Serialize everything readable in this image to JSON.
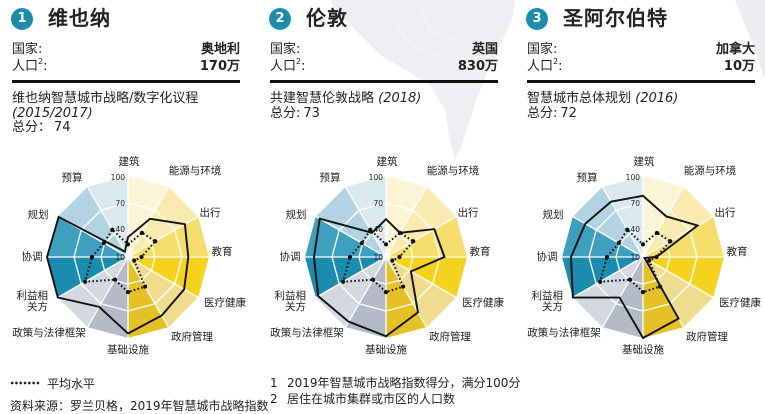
{
  "labels": {
    "country": "国家:",
    "population": {
      "text": "人口",
      "sup": "2",
      "suffix": ":"
    }
  },
  "cities": [
    {
      "rank": "1",
      "name": "维也纳",
      "country": "奥地利",
      "population": "170万",
      "strategy": "维也纳智慧城市战略/数字化议程",
      "strategy_year": "(2015/2017)",
      "score_label": "总分：",
      "score": "74"
    },
    {
      "rank": "2",
      "name": "伦敦",
      "country": "英国",
      "population": "830万",
      "strategy": "共建智慧伦敦战略",
      "strategy_year": "(2018)",
      "score_label": "总分:",
      "score": "73"
    },
    {
      "rank": "3",
      "name": "圣阿尔伯特",
      "country": "加拿大",
      "population": "10万",
      "strategy": "智慧城市总体规划",
      "strategy_year": "(2016)",
      "score_label": "总分:",
      "score": "72"
    }
  ],
  "radar": {
    "axis_labels": [
      [
        "建筑"
      ],
      [
        "能源与环境"
      ],
      [
        "出行"
      ],
      [
        "教育"
      ],
      [
        "医疗健康"
      ],
      [
        "政府管理"
      ],
      [
        "基础设施"
      ],
      [
        "政策与法律框架"
      ],
      [
        "利益相",
        "关方"
      ],
      [
        "协调"
      ],
      [
        "规划"
      ],
      [
        "预算"
      ]
    ],
    "scale_ticks": [
      "100",
      "70",
      "40",
      "10"
    ],
    "wedge_colors": [
      "#fcf4d6",
      "#f9eab0",
      "#f6de6c",
      "#f4d21e",
      "#efdc8c",
      "#e5c125",
      "#b4bbc7",
      "#d3d8e1",
      "#1b8bae",
      "#3f9fbf",
      "#b3d3e2",
      "#dce8ef"
    ],
    "line_color": "#111111"
  },
  "legend": {
    "average_label": "平均水平"
  },
  "source": "资料来源：罗兰贝格，2019年智慧城市战略指数",
  "footnotes": [
    {
      "num": "1",
      "text": "2019年智慧城市战略指数得分，满分100分"
    },
    {
      "num": "2",
      "text": "居住在城市集群或市区的人口数"
    }
  ],
  "colors": {
    "badge": "#1d8cab",
    "text": "#222222",
    "map": "#edeff2"
  },
  "chart_data": [
    {
      "type": "radar",
      "title": "维也纳",
      "axes": [
        "建筑",
        "能源与环境",
        "出行",
        "教育",
        "医疗健康",
        "政府管理",
        "基础设施",
        "政策与法律框架",
        "利益相关方",
        "协调",
        "规划",
        "预算"
      ],
      "range": [
        10,
        100
      ],
      "ticks": [
        10,
        40,
        70,
        100
      ],
      "series": [
        {
          "name": "维也纳",
          "values": [
            32,
            59,
            83,
            77,
            82,
            85,
            95,
            74,
            100,
            100,
            99,
            17
          ]
        },
        {
          "name": "平均水平",
          "values": [
            24,
            41,
            45,
            25,
            18,
            48,
            49,
            39,
            65,
            50,
            41,
            45
          ]
        }
      ]
    },
    {
      "type": "radar",
      "title": "伦敦",
      "axes": [
        "建筑",
        "能源与环境",
        "出行",
        "教育",
        "医疗健康",
        "政府管理",
        "基础设施",
        "政策与法律框架",
        "利益相关方",
        "协调",
        "规划",
        "预算"
      ],
      "range": [
        10,
        100
      ],
      "ticks": [
        10,
        40,
        70,
        100
      ],
      "series": [
        {
          "name": "伦敦",
          "values": [
            52,
            41,
            72,
            75,
            42,
            81,
            98,
            93,
            97,
            90,
            95,
            41
          ]
        },
        {
          "name": "平均水平",
          "values": [
            24,
            41,
            45,
            25,
            18,
            48,
            49,
            39,
            65,
            50,
            41,
            45
          ]
        }
      ]
    },
    {
      "type": "radar",
      "title": "圣阿尔伯特",
      "axes": [
        "建筑",
        "能源与环境",
        "出行",
        "教育",
        "医疗健康",
        "政府管理",
        "基础设施",
        "政策与法律框架",
        "利益相关方",
        "协调",
        "规划",
        "预算"
      ],
      "range": [
        10,
        100
      ],
      "ticks": [
        10,
        40,
        70,
        100
      ],
      "series": [
        {
          "name": "圣阿尔伯特",
          "values": [
            78,
            62,
            80,
            25,
            12,
            89,
            100,
            62,
            100,
            90,
            84,
            81
          ]
        },
        {
          "name": "平均水平",
          "values": [
            24,
            41,
            45,
            25,
            18,
            48,
            49,
            39,
            65,
            50,
            41,
            45
          ]
        }
      ]
    }
  ]
}
